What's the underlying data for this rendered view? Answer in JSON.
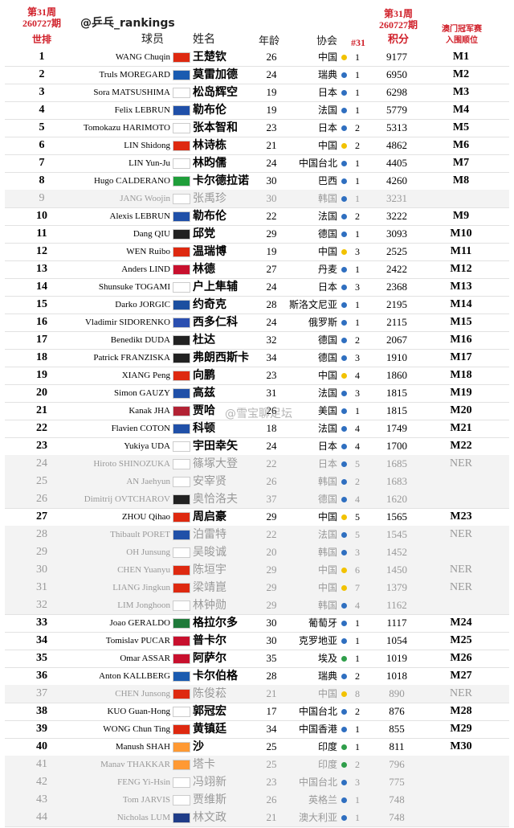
{
  "header": {
    "left_issue": "第31周\n260727期",
    "account": "@乒乓_rankings",
    "col_rank": "世排",
    "col_player": "球员",
    "col_name": "姓名",
    "col_age": "年龄",
    "col_assoc": "协会",
    "col_n31": "#31",
    "right_issue": "第31周\n260727期",
    "col_points": "积分",
    "col_qual": "澳门冠军赛\n入围顺位"
  },
  "watermark": "@雪宝聊足坛",
  "table": {
    "rows": [
      {
        "rank": 1,
        "name_en": "WANG Chuqin",
        "flag": "#de2910",
        "name_cn": "王楚钦",
        "age": 26,
        "assoc": "中国",
        "dot": "#f2c200",
        "n31": 1,
        "points": 9177,
        "qual": "M1"
      },
      {
        "rank": 2,
        "name_en": "Truls MOREGARD",
        "flag": "#1a5bb0",
        "name_cn": "莫雷加德",
        "age": 24,
        "assoc": "瑞典",
        "dot": "#2f6fc0",
        "n31": 1,
        "points": 6950,
        "qual": "M2"
      },
      {
        "rank": 3,
        "name_en": "Sora MATSUSHIMA",
        "flag": "#ffffff",
        "name_cn": "松岛辉空",
        "age": 19,
        "assoc": "日本",
        "dot": "#2f6fc0",
        "n31": 1,
        "points": 6298,
        "qual": "M3"
      },
      {
        "rank": 4,
        "name_en": "Felix LEBRUN",
        "flag": "#2050a8",
        "name_cn": "勒布伦",
        "age": 19,
        "assoc": "法国",
        "dot": "#2f6fc0",
        "n31": 1,
        "points": 5779,
        "qual": "M4"
      },
      {
        "rank": 5,
        "name_en": "Tomokazu HARIMOTO",
        "flag": "#ffffff",
        "name_cn": "张本智和",
        "age": 23,
        "assoc": "日本",
        "dot": "#2f6fc0",
        "n31": 2,
        "points": 5313,
        "qual": "M5"
      },
      {
        "rank": 6,
        "name_en": "LIN Shidong",
        "flag": "#de2910",
        "name_cn": "林诗栋",
        "age": 21,
        "assoc": "中国",
        "dot": "#f2c200",
        "n31": 2,
        "points": 4862,
        "qual": "M6"
      },
      {
        "rank": 7,
        "name_en": "LIN Yun-Ju",
        "flag": "#ffffff",
        "name_cn": "林昀儒",
        "age": 24,
        "assoc": "中国台北",
        "dot": "#2f6fc0",
        "n31": 1,
        "points": 4405,
        "qual": "M7"
      },
      {
        "rank": 8,
        "name_en": "Hugo CALDERANO",
        "flag": "#1f9e3a",
        "name_cn": "卡尔德拉诺",
        "age": 30,
        "assoc": "巴西",
        "dot": "#2f6fc0",
        "n31": 1,
        "points": 4260,
        "qual": "M8"
      },
      {
        "rank": 9,
        "name_en": "JANG Woojin",
        "flag": "#ffffff",
        "name_cn": "张禹珍",
        "age": 30,
        "assoc": "韩国",
        "dot": "#2f6fc0",
        "n31": 1,
        "points": 3231,
        "muted": true
      },
      {
        "rank": 10,
        "name_en": "Alexis LEBRUN",
        "flag": "#2050a8",
        "name_cn": "勒布伦",
        "age": 22,
        "assoc": "法国",
        "dot": "#2f6fc0",
        "n31": 2,
        "points": 3222,
        "qual": "M9"
      },
      {
        "rank": 11,
        "name_en": "Dang QIU",
        "flag": "#222222",
        "name_cn": "邱党",
        "age": 29,
        "assoc": "德国",
        "dot": "#2f6fc0",
        "n31": 1,
        "points": 3093,
        "qual": "M10"
      },
      {
        "rank": 12,
        "name_en": "WEN Ruibo",
        "flag": "#de2910",
        "name_cn": "温瑞博",
        "age": 19,
        "assoc": "中国",
        "dot": "#f2c200",
        "n31": 3,
        "points": 2525,
        "qual": "M11"
      },
      {
        "rank": 13,
        "name_en": "Anders LIND",
        "flag": "#c8102e",
        "name_cn": "林德",
        "age": 27,
        "assoc": "丹麦",
        "dot": "#2f6fc0",
        "n31": 1,
        "points": 2422,
        "qual": "M12"
      },
      {
        "rank": 14,
        "name_en": "Shunsuke TOGAMI",
        "flag": "#ffffff",
        "name_cn": "户上隼辅",
        "age": 24,
        "assoc": "日本",
        "dot": "#2f6fc0",
        "n31": 3,
        "points": 2368,
        "qual": "M13"
      },
      {
        "rank": 15,
        "name_en": "Darko JORGIC",
        "flag": "#1c4fa0",
        "name_cn": "约奇克",
        "age": 28,
        "assoc": "斯洛文尼亚",
        "dot": "#2f6fc0",
        "n31": 1,
        "points": 2195,
        "qual": "M14"
      },
      {
        "rank": 16,
        "name_en": "Vladimir SIDORENKO",
        "flag": "#2b4fb0",
        "name_cn": "西多仁科",
        "age": 24,
        "assoc": "俄罗斯",
        "dot": "#2f6fc0",
        "n31": 1,
        "points": 2115,
        "qual": "M15"
      },
      {
        "rank": 17,
        "name_en": "Benedikt DUDA",
        "flag": "#222222",
        "name_cn": "杜达",
        "age": 32,
        "assoc": "德国",
        "dot": "#2f6fc0",
        "n31": 2,
        "points": 2067,
        "qual": "M16"
      },
      {
        "rank": 18,
        "name_en": "Patrick FRANZISKA",
        "flag": "#222222",
        "name_cn": "弗朗西斯卡",
        "age": 34,
        "assoc": "德国",
        "dot": "#2f6fc0",
        "n31": 3,
        "points": 1910,
        "qual": "M17"
      },
      {
        "rank": 19,
        "name_en": "XIANG Peng",
        "flag": "#de2910",
        "name_cn": "向鹏",
        "age": 23,
        "assoc": "中国",
        "dot": "#f2c200",
        "n31": 4,
        "points": 1860,
        "qual": "M18"
      },
      {
        "rank": 20,
        "name_en": "Simon GAUZY",
        "flag": "#2050a8",
        "name_cn": "高兹",
        "age": 31,
        "assoc": "法国",
        "dot": "#2f6fc0",
        "n31": 3,
        "points": 1815,
        "qual": "M19"
      },
      {
        "rank": 21,
        "name_en": "Kanak JHA",
        "flag": "#b22234",
        "name_cn": "贾哈",
        "age": 26,
        "assoc": "美国",
        "dot": "#2f6fc0",
        "n31": 1,
        "points": 1815,
        "qual": "M20"
      },
      {
        "rank": 22,
        "name_en": "Flavien COTON",
        "flag": "#2050a8",
        "name_cn": "科顿",
        "age": 18,
        "assoc": "法国",
        "dot": "#2f6fc0",
        "n31": 4,
        "points": 1749,
        "qual": "M21"
      },
      {
        "rank": 23,
        "name_en": "Yukiya UDA",
        "flag": "#ffffff",
        "name_cn": "宇田幸矢",
        "age": 24,
        "assoc": "日本",
        "dot": "#2f6fc0",
        "n31": 4,
        "points": 1700,
        "qual": "M22"
      },
      {
        "rank": 24,
        "name_en": "Hiroto SHINOZUKA",
        "flag": "#ffffff",
        "name_cn": "篠塚大登",
        "age": 22,
        "assoc": "日本",
        "dot": "#2f6fc0",
        "n31": 5,
        "points": 1685,
        "qual": "NER",
        "muted": true
      },
      {
        "rank": 25,
        "name_en": "AN Jaehyun",
        "flag": "#ffffff",
        "name_cn": "安宰贤",
        "age": 26,
        "assoc": "韩国",
        "dot": "#2f6fc0",
        "n31": 2,
        "points": 1683,
        "muted": true
      },
      {
        "rank": 26,
        "name_en": "Dimitrij OVTCHAROV",
        "flag": "#222222",
        "name_cn": "奥恰洛夫",
        "age": 37,
        "assoc": "德国",
        "dot": "#2f6fc0",
        "n31": 4,
        "points": 1620,
        "muted": true
      },
      {
        "rank": 27,
        "name_en": "ZHOU Qihao",
        "flag": "#de2910",
        "name_cn": "周启豪",
        "age": 29,
        "assoc": "中国",
        "dot": "#f2c200",
        "n31": 5,
        "points": 1565,
        "qual": "M23"
      },
      {
        "rank": 28,
        "name_en": "Thibault PORET",
        "flag": "#2050a8",
        "name_cn": "泊雷特",
        "age": 22,
        "assoc": "法国",
        "dot": "#2f6fc0",
        "n31": 5,
        "points": 1545,
        "qual": "NER",
        "muted": true
      },
      {
        "rank": 29,
        "name_en": "OH Junsung",
        "flag": "#ffffff",
        "name_cn": "吴晙诚",
        "age": 20,
        "assoc": "韩国",
        "dot": "#2f6fc0",
        "n31": 3,
        "points": 1452,
        "muted": true
      },
      {
        "rank": 30,
        "name_en": "CHEN Yuanyu",
        "flag": "#de2910",
        "name_cn": "陈垣宇",
        "age": 29,
        "assoc": "中国",
        "dot": "#f2c200",
        "n31": 6,
        "points": 1450,
        "qual": "NER",
        "muted": true
      },
      {
        "rank": 31,
        "name_en": "LIANG Jingkun",
        "flag": "#de2910",
        "name_cn": "梁靖崑",
        "age": 29,
        "assoc": "中国",
        "dot": "#f2c200",
        "n31": 7,
        "points": 1379,
        "qual": "NER",
        "muted": true
      },
      {
        "rank": 32,
        "name_en": "LIM Jonghoon",
        "flag": "#ffffff",
        "name_cn": "林钟勋",
        "age": 29,
        "assoc": "韩国",
        "dot": "#2f6fc0",
        "n31": 4,
        "points": 1162,
        "muted": true
      },
      {
        "rank": 33,
        "name_en": "Joao GERALDO",
        "flag": "#1f7a3a",
        "name_cn": "格拉尔多",
        "age": 30,
        "assoc": "葡萄牙",
        "dot": "#2f6fc0",
        "n31": 1,
        "points": 1117,
        "qual": "M24"
      },
      {
        "rank": 34,
        "name_en": "Tomislav PUCAR",
        "flag": "#c8102e",
        "name_cn": "普卡尔",
        "age": 30,
        "assoc": "克罗地亚",
        "dot": "#2f6fc0",
        "n31": 1,
        "points": 1054,
        "qual": "M25"
      },
      {
        "rank": 35,
        "name_en": "Omar ASSAR",
        "flag": "#c8102e",
        "name_cn": "阿萨尔",
        "age": 35,
        "assoc": "埃及",
        "dot": "#2f9e4a",
        "n31": 1,
        "points": 1019,
        "qual": "M26"
      },
      {
        "rank": 36,
        "name_en": "Anton KALLBERG",
        "flag": "#1a5bb0",
        "name_cn": "卡尔伯格",
        "age": 28,
        "assoc": "瑞典",
        "dot": "#2f6fc0",
        "n31": 2,
        "points": 1018,
        "qual": "M27"
      },
      {
        "rank": 37,
        "name_en": "CHEN Junsong",
        "flag": "#de2910",
        "name_cn": "陈俊菘",
        "age": 21,
        "assoc": "中国",
        "dot": "#f2c200",
        "n31": 8,
        "points": 890,
        "qual": "NER",
        "muted": true
      },
      {
        "rank": 38,
        "name_en": "KUO Guan-Hong",
        "flag": "#ffffff",
        "name_cn": "郭冠宏",
        "age": 17,
        "assoc": "中国台北",
        "dot": "#2f6fc0",
        "n31": 2,
        "points": 876,
        "qual": "M28"
      },
      {
        "rank": 39,
        "name_en": "WONG Chun Ting",
        "flag": "#de2910",
        "name_cn": "黄镇廷",
        "age": 34,
        "assoc": "中国香港",
        "dot": "#2f6fc0",
        "n31": 1,
        "points": 855,
        "qual": "M29"
      },
      {
        "rank": 40,
        "name_en": "Manush SHAH",
        "flag": "#ff9933",
        "name_cn": "沙",
        "age": 25,
        "assoc": "印度",
        "dot": "#2f9e4a",
        "n31": 1,
        "points": 811,
        "qual": "M30"
      },
      {
        "rank": 41,
        "name_en": "Manav THAKKAR",
        "flag": "#ff9933",
        "name_cn": "塔卡",
        "age": 25,
        "assoc": "印度",
        "dot": "#2f9e4a",
        "n31": 2,
        "points": 796,
        "muted": true
      },
      {
        "rank": 42,
        "name_en": "FENG Yi-Hsin",
        "flag": "#ffffff",
        "name_cn": "冯翊新",
        "age": 23,
        "assoc": "中国台北",
        "dot": "#2f6fc0",
        "n31": 3,
        "points": 775,
        "muted": true
      },
      {
        "rank": 43,
        "name_en": "Tom JARVIS",
        "flag": "#ffffff",
        "name_cn": "贾维斯",
        "age": 26,
        "assoc": "英格兰",
        "dot": "#2f6fc0",
        "n31": 1,
        "points": 748,
        "muted": true
      },
      {
        "rank": 44,
        "name_en": "Nicholas LUM",
        "flag": "#1f3c88",
        "name_cn": "林文政",
        "age": 21,
        "assoc": "澳大利亚",
        "dot": "#2f6fc0",
        "n31": 1,
        "points": 748,
        "muted": true
      }
    ]
  }
}
